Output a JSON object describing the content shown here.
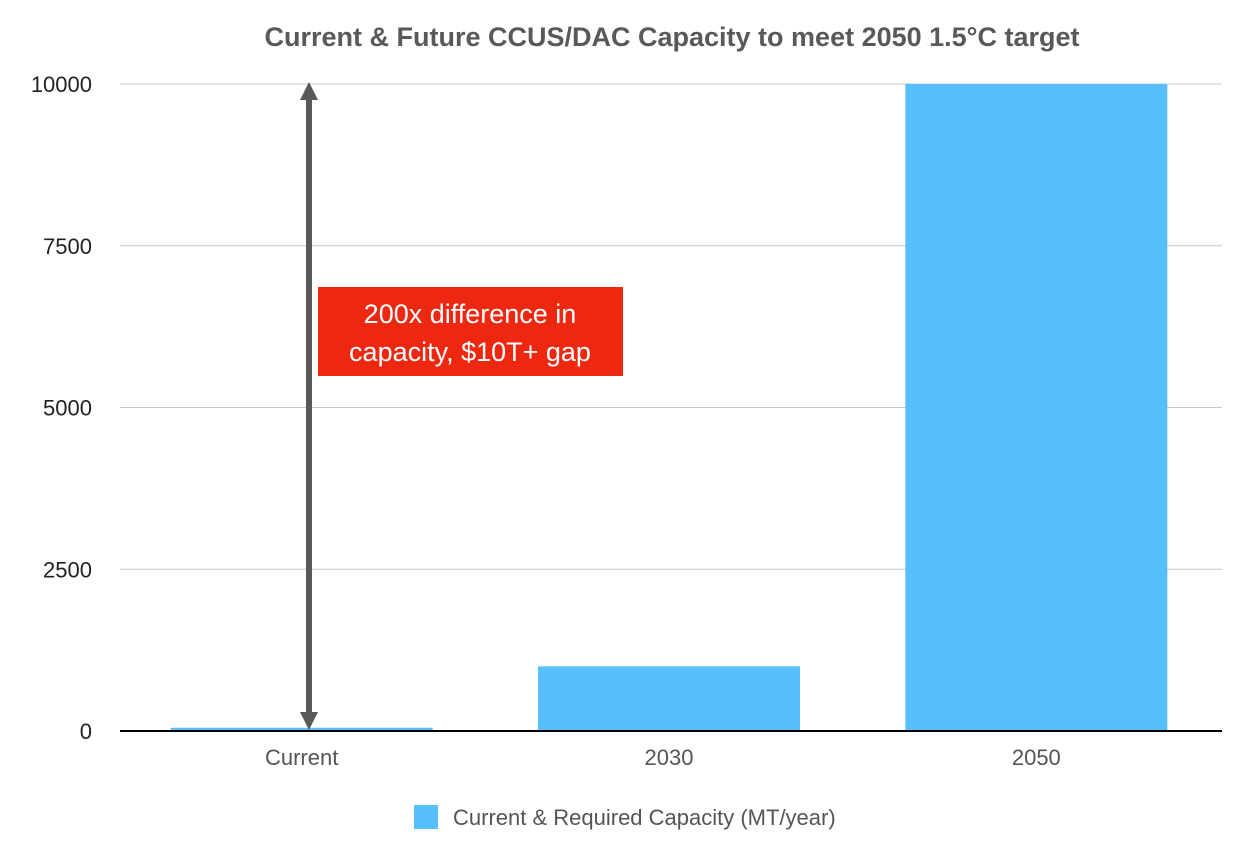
{
  "chart_data": {
    "type": "bar",
    "title": "Current & Future CCUS/DAC Capacity to meet 2050 1.5°C target",
    "categories": [
      "Current",
      "2030",
      "2050"
    ],
    "series": [
      {
        "name": "Current & Required Capacity (MT/year)",
        "values": [
          50,
          1000,
          10000
        ],
        "color": "#56BFFC"
      }
    ],
    "xlabel": "",
    "ylabel": "",
    "ylim": [
      0,
      10000
    ],
    "yticks": [
      "0",
      "2500",
      "5000",
      "7500",
      "10000"
    ],
    "grid": true,
    "legend": "bottom-center",
    "annotation": {
      "lines": [
        "200x difference in",
        "capacity, $10T+ gap"
      ],
      "box_color": "#EE2710",
      "arrow_color": "#595959",
      "arrow_from": 0,
      "arrow_to": 10000
    }
  }
}
